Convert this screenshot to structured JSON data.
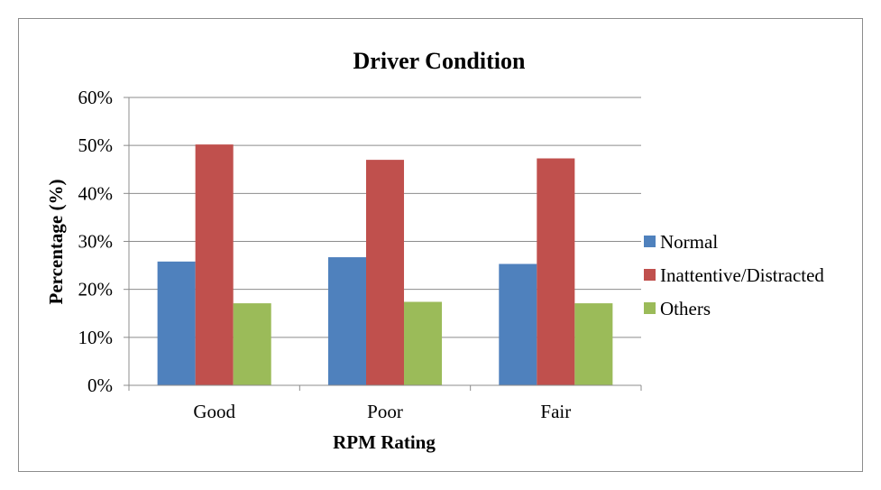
{
  "chart_data": {
    "type": "bar",
    "title": "Driver Condition",
    "xlabel": "RPM Rating",
    "ylabel": "Percentage (%)",
    "categories": [
      "Good",
      "Poor",
      "Fair"
    ],
    "series": [
      {
        "name": "Normal",
        "color": "#4f81bd",
        "values": [
          25.8,
          26.7,
          25.3
        ]
      },
      {
        "name": "Inattentive/Distracted",
        "color": "#c0504d",
        "values": [
          50.2,
          47.0,
          47.3
        ]
      },
      {
        "name": "Others",
        "color": "#9bbb59",
        "values": [
          17.1,
          17.4,
          17.1
        ]
      }
    ],
    "ylim": [
      0,
      60
    ],
    "yticks": [
      0,
      10,
      20,
      30,
      40,
      50,
      60
    ],
    "ytick_labels": [
      "0%",
      "10%",
      "20%",
      "30%",
      "40%",
      "50%",
      "60%"
    ],
    "grid": true,
    "legend_position": "right"
  }
}
